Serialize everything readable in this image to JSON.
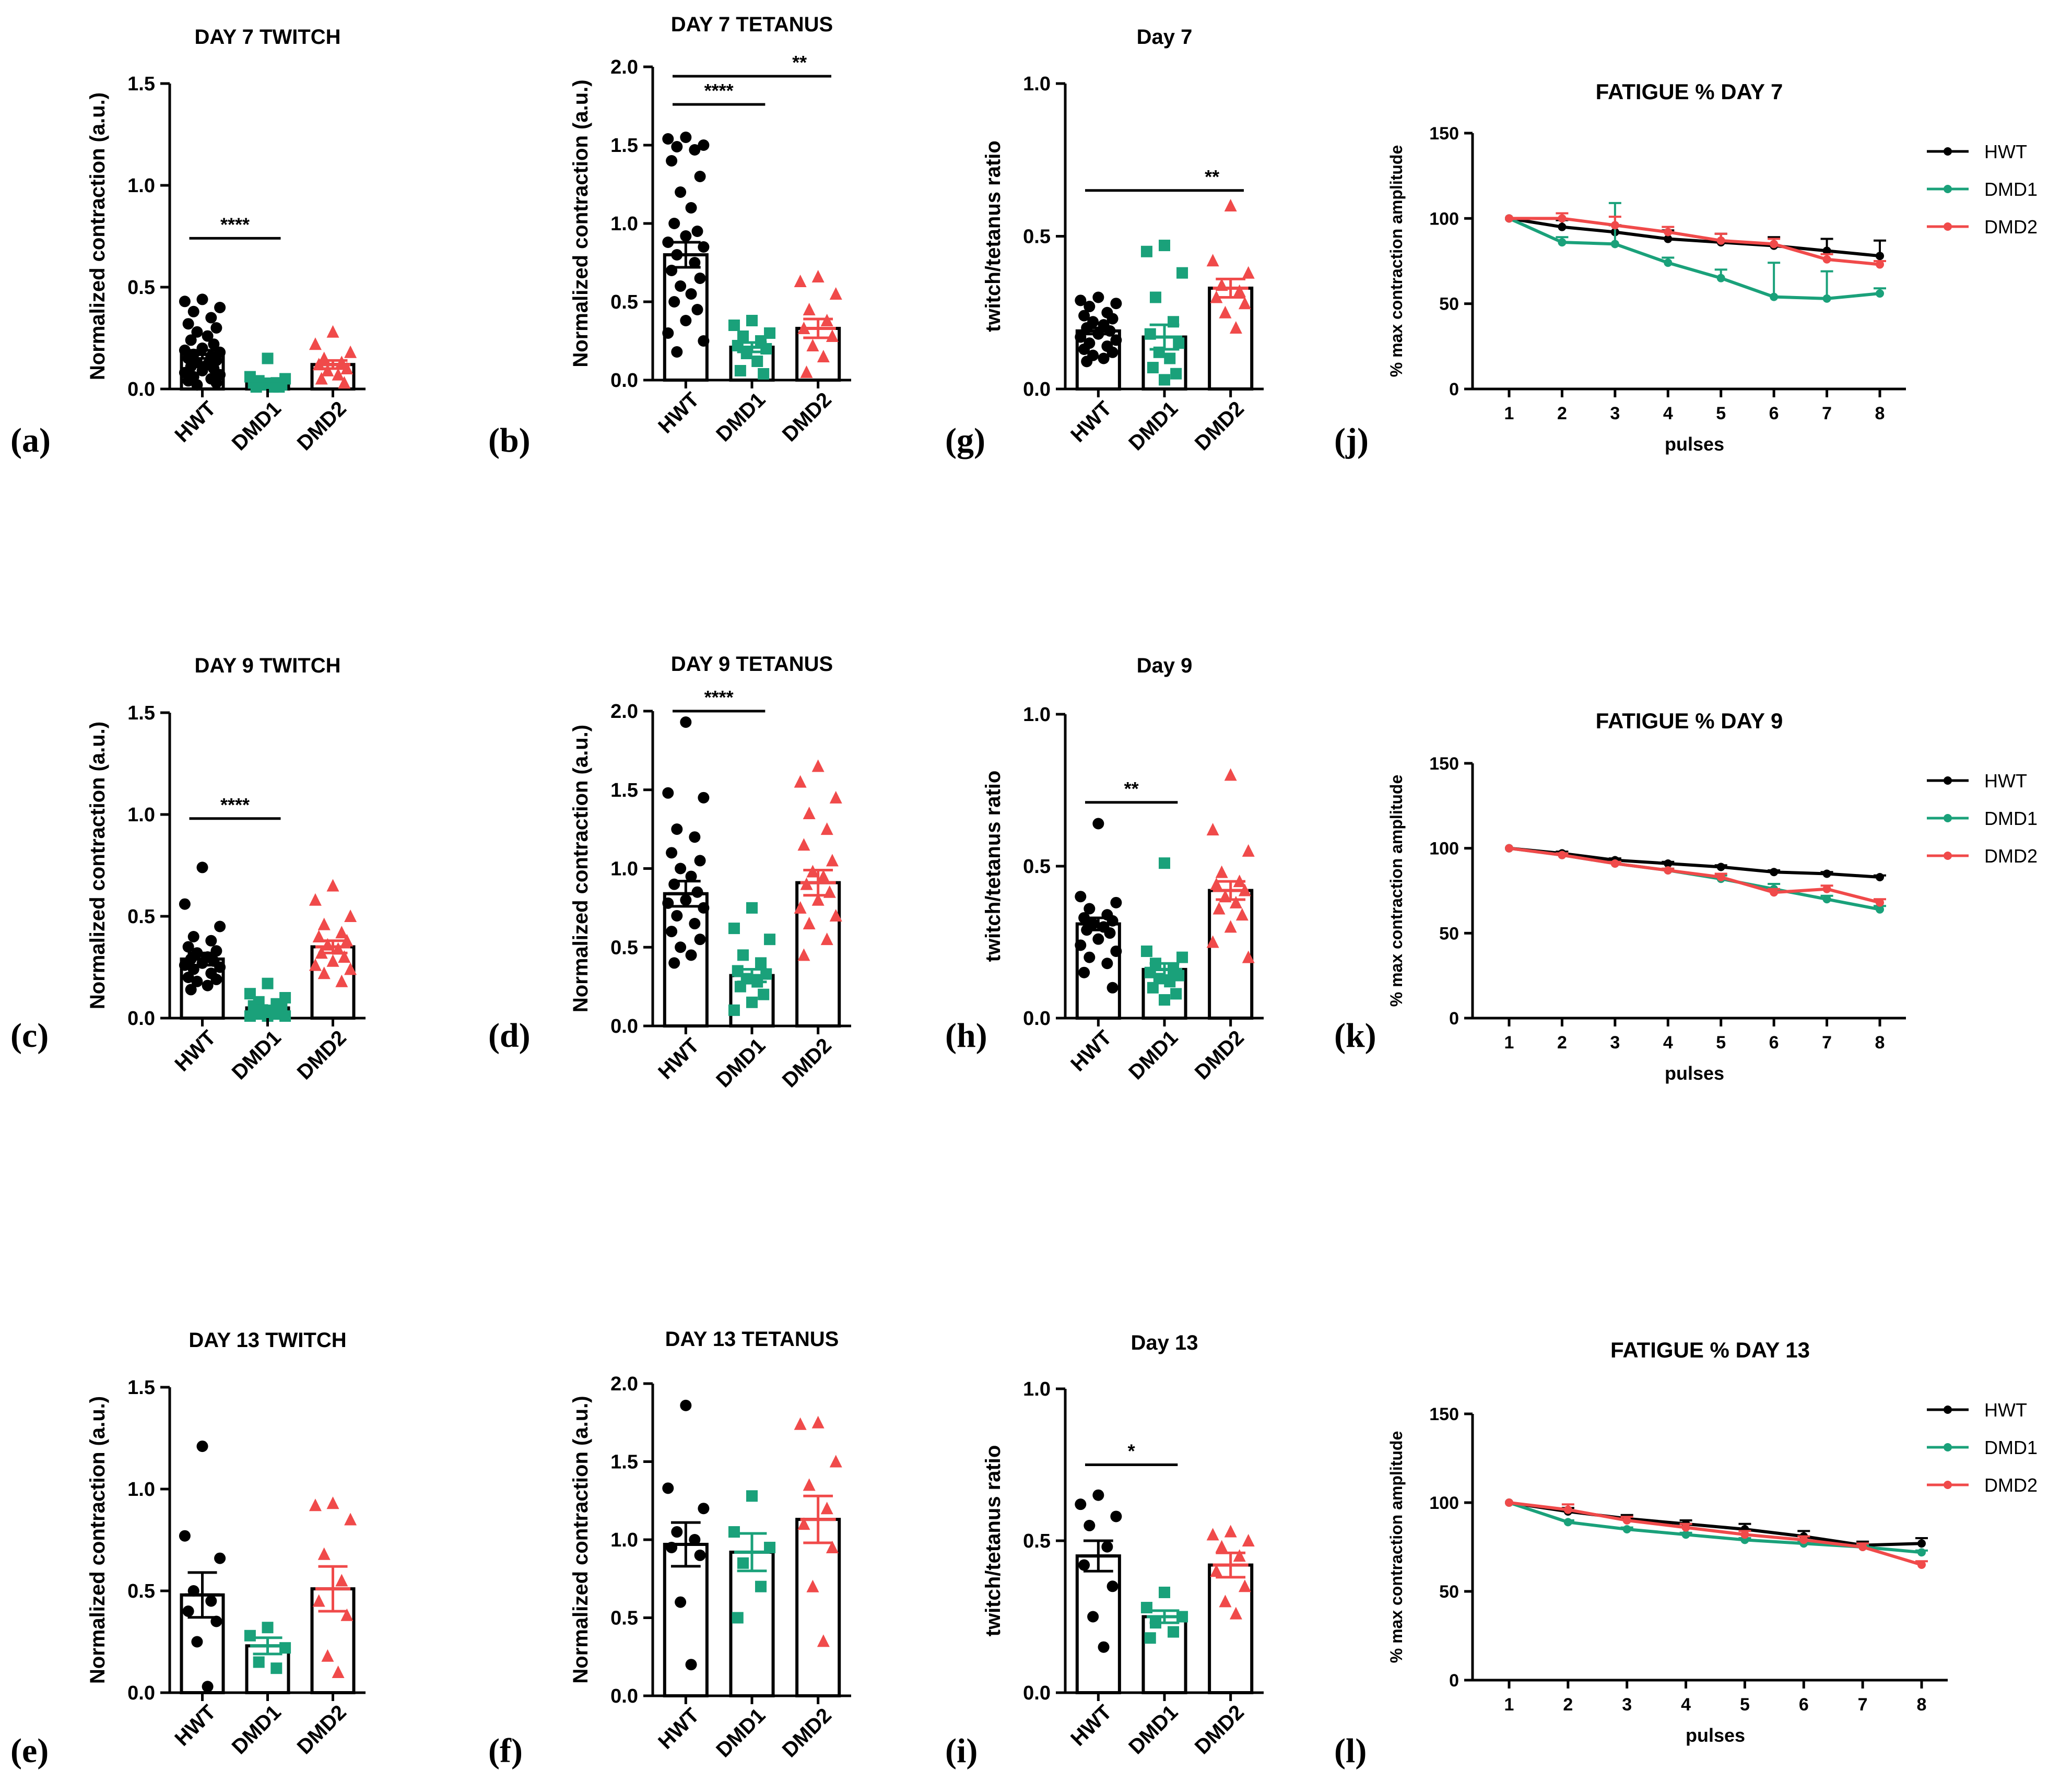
{
  "colors": {
    "HWT": "#000000",
    "DMD1": "#1aa17a",
    "DMD2": "#f04a4a"
  },
  "chart_data": [
    {
      "id": "a",
      "letter": "(a)",
      "type": "bar",
      "title": "DAY 7 TWITCH",
      "ylabel": "Normalized contraction (a.u.)",
      "ylim": [
        0,
        1.5
      ],
      "yticks": [
        "0.0",
        "0.5",
        "1.0",
        "1.5"
      ],
      "categories": [
        "HWT",
        "DMD1",
        "DMD2"
      ],
      "means": [
        0.17,
        0.04,
        0.12
      ],
      "sem": [
        0.02,
        0.01,
        0.02
      ],
      "points": [
        [
          0.44,
          0.43,
          0.4,
          0.38,
          0.35,
          0.32,
          0.3,
          0.28,
          0.26,
          0.24,
          0.22,
          0.2,
          0.19,
          0.18,
          0.17,
          0.16,
          0.15,
          0.14,
          0.13,
          0.12,
          0.11,
          0.1,
          0.09,
          0.08,
          0.07,
          0.06,
          0.05,
          0.04,
          0.03,
          0.02
        ],
        [
          0.15,
          0.06,
          0.05,
          0.04,
          0.03,
          0.03,
          0.02,
          0.02,
          0.01,
          0.01,
          0.01
        ],
        [
          0.28,
          0.22,
          0.18,
          0.15,
          0.13,
          0.12,
          0.1,
          0.09,
          0.07,
          0.05,
          0.03
        ]
      ],
      "sig": [
        {
          "from": 0,
          "to": 1,
          "label": "****",
          "y": 0.74
        }
      ]
    },
    {
      "id": "b",
      "letter": "(b)",
      "type": "bar",
      "title": "DAY 7 TETANUS",
      "ylabel": "Normalized contraction (a.u.)",
      "ylim": [
        0,
        2.0
      ],
      "yticks": [
        "0.0",
        "0.5",
        "1.0",
        "1.5",
        "2.0"
      ],
      "categories": [
        "HWT",
        "DMD1",
        "DMD2"
      ],
      "means": [
        0.8,
        0.21,
        0.33
      ],
      "sem": [
        0.08,
        0.03,
        0.06
      ],
      "points": [
        [
          1.55,
          1.54,
          1.5,
          1.49,
          1.47,
          1.4,
          1.3,
          1.2,
          1.1,
          1.0,
          0.95,
          0.92,
          0.88,
          0.85,
          0.8,
          0.75,
          0.7,
          0.65,
          0.6,
          0.55,
          0.5,
          0.45,
          0.38,
          0.3,
          0.25,
          0.18
        ],
        [
          0.38,
          0.35,
          0.3,
          0.28,
          0.25,
          0.22,
          0.2,
          0.17,
          0.12,
          0.06,
          0.04
        ],
        [
          0.66,
          0.63,
          0.55,
          0.45,
          0.38,
          0.33,
          0.28,
          0.22,
          0.15,
          0.05
        ]
      ],
      "sig": [
        {
          "from": 0,
          "to": 1,
          "label": "****",
          "y": 1.76
        },
        {
          "from": 0,
          "to": 2,
          "label": "**",
          "y": 1.94
        }
      ]
    },
    {
      "id": "g",
      "letter": "(g)",
      "type": "bar",
      "title": "Day 7",
      "ylabel": "twitch/tetanus ratio",
      "ylim": [
        0,
        1.0
      ],
      "yticks": [
        "0.0",
        "0.5",
        "1.0"
      ],
      "categories": [
        "HWT",
        "DMD1",
        "DMD2"
      ],
      "means": [
        0.19,
        0.17,
        0.33
      ],
      "sem": [
        0.01,
        0.04,
        0.03
      ],
      "points": [
        [
          0.3,
          0.29,
          0.28,
          0.27,
          0.25,
          0.24,
          0.23,
          0.22,
          0.21,
          0.2,
          0.19,
          0.18,
          0.17,
          0.16,
          0.15,
          0.14,
          0.13,
          0.12,
          0.11,
          0.1,
          0.09
        ],
        [
          0.47,
          0.45,
          0.38,
          0.3,
          0.22,
          0.18,
          0.15,
          0.12,
          0.1,
          0.07,
          0.05,
          0.03
        ],
        [
          0.6,
          0.42,
          0.38,
          0.34,
          0.32,
          0.3,
          0.28,
          0.25,
          0.2
        ]
      ],
      "sig": [
        {
          "from": 0,
          "to": 2,
          "label": "**",
          "y": 0.65
        }
      ]
    },
    {
      "id": "j",
      "letter": "(j)",
      "type": "line",
      "title": "FATIGUE % DAY 7",
      "ylabel": "% max contraction amplitude",
      "xlabel": "pulses",
      "ylim": [
        0,
        150
      ],
      "yticks": [
        "0",
        "50",
        "100",
        "150"
      ],
      "x": [
        1,
        2,
        3,
        4,
        5,
        6,
        7,
        8
      ],
      "xticks": [
        "1",
        "2",
        "3",
        "4",
        "5",
        "6",
        "7",
        "8"
      ],
      "series": [
        {
          "name": "HWT",
          "values": [
            100,
            95,
            92,
            88,
            86,
            84,
            81,
            78
          ],
          "err": [
            0,
            4,
            4,
            5,
            5,
            5,
            7,
            9
          ]
        },
        {
          "name": "DMD1",
          "values": [
            100,
            86,
            85,
            74,
            65,
            54,
            53,
            56
          ],
          "err": [
            0,
            3,
            24,
            3,
            5,
            20,
            16,
            3
          ]
        },
        {
          "name": "DMD2",
          "values": [
            100,
            100,
            96,
            92,
            87,
            85,
            76,
            73
          ],
          "err": [
            0,
            3,
            5,
            3,
            4,
            3,
            3,
            2
          ]
        }
      ]
    },
    {
      "id": "c",
      "letter": "(c)",
      "type": "bar",
      "title": "DAY 9 TWITCH",
      "ylabel": "Normalized contraction (a.u.)",
      "ylim": [
        0,
        1.5
      ],
      "yticks": [
        "0.0",
        "0.5",
        "1.0",
        "1.5"
      ],
      "categories": [
        "HWT",
        "DMD1",
        "DMD2"
      ],
      "means": [
        0.29,
        0.05,
        0.35
      ],
      "sem": [
        0.03,
        0.01,
        0.03
      ],
      "points": [
        [
          0.74,
          0.56,
          0.45,
          0.4,
          0.38,
          0.35,
          0.33,
          0.32,
          0.3,
          0.29,
          0.28,
          0.27,
          0.26,
          0.25,
          0.24,
          0.22,
          0.2,
          0.19,
          0.18,
          0.16,
          0.14
        ],
        [
          0.17,
          0.12,
          0.1,
          0.08,
          0.07,
          0.06,
          0.05,
          0.04,
          0.03,
          0.02,
          0.02,
          0.01,
          0.01,
          0.01
        ],
        [
          0.65,
          0.58,
          0.5,
          0.46,
          0.42,
          0.4,
          0.38,
          0.36,
          0.34,
          0.32,
          0.3,
          0.28,
          0.26,
          0.24,
          0.22,
          0.18
        ]
      ],
      "sig": [
        {
          "from": 0,
          "to": 1,
          "label": "****",
          "y": 0.98
        }
      ]
    },
    {
      "id": "d",
      "letter": "(d)",
      "type": "bar",
      "title": "DAY 9 TETANUS",
      "ylabel": "Normalized contraction (a.u.)",
      "ylim": [
        0,
        2.0
      ],
      "yticks": [
        "0.0",
        "0.5",
        "1.0",
        "1.5",
        "2.0"
      ],
      "categories": [
        "HWT",
        "DMD1",
        "DMD2"
      ],
      "means": [
        0.84,
        0.32,
        0.91
      ],
      "sem": [
        0.08,
        0.04,
        0.08
      ],
      "points": [
        [
          1.93,
          1.48,
          1.45,
          1.25,
          1.2,
          1.1,
          1.05,
          1.0,
          0.95,
          0.9,
          0.85,
          0.8,
          0.78,
          0.75,
          0.7,
          0.65,
          0.6,
          0.55,
          0.5,
          0.45,
          0.4
        ],
        [
          0.75,
          0.62,
          0.55,
          0.45,
          0.4,
          0.35,
          0.33,
          0.3,
          0.28,
          0.25,
          0.2,
          0.15,
          0.1
        ],
        [
          1.65,
          1.55,
          1.45,
          1.35,
          1.25,
          1.15,
          1.05,
          0.98,
          0.95,
          0.9,
          0.85,
          0.8,
          0.75,
          0.7,
          0.65,
          0.55,
          0.45
        ]
      ],
      "sig": [
        {
          "from": 0,
          "to": 1,
          "label": "****",
          "y": 2.0
        }
      ]
    },
    {
      "id": "h",
      "letter": "(h)",
      "type": "bar",
      "title": "Day 9",
      "ylabel": "twitch/tetanus ratio",
      "ylim": [
        0,
        1.0
      ],
      "yticks": [
        "0.0",
        "0.5",
        "1.0"
      ],
      "categories": [
        "HWT",
        "DMD1",
        "DMD2"
      ],
      "means": [
        0.31,
        0.16,
        0.42
      ],
      "sem": [
        0.02,
        0.02,
        0.03
      ],
      "points": [
        [
          0.64,
          0.4,
          0.38,
          0.36,
          0.34,
          0.33,
          0.32,
          0.31,
          0.3,
          0.29,
          0.28,
          0.26,
          0.24,
          0.22,
          0.2,
          0.18,
          0.15,
          0.1
        ],
        [
          0.51,
          0.22,
          0.2,
          0.18,
          0.16,
          0.15,
          0.14,
          0.13,
          0.12,
          0.1,
          0.08,
          0.06
        ],
        [
          0.8,
          0.62,
          0.55,
          0.48,
          0.45,
          0.44,
          0.42,
          0.4,
          0.38,
          0.36,
          0.34,
          0.3,
          0.25,
          0.2
        ]
      ],
      "sig": [
        {
          "from": 0,
          "to": 1,
          "label": "**",
          "y": 0.71
        }
      ]
    },
    {
      "id": "k",
      "letter": "(k)",
      "type": "line",
      "title": "FATIGUE % DAY 9",
      "ylabel": "% max contraction amplitude",
      "xlabel": "pulses",
      "ylim": [
        0,
        150
      ],
      "yticks": [
        "0",
        "50",
        "100",
        "150"
      ],
      "x": [
        1,
        2,
        3,
        4,
        5,
        6,
        7,
        8
      ],
      "xticks": [
        "1",
        "2",
        "3",
        "4",
        "5",
        "6",
        "7",
        "8"
      ],
      "series": [
        {
          "name": "HWT",
          "values": [
            100,
            97,
            93,
            91,
            89,
            86,
            85,
            83
          ],
          "err": [
            0,
            1,
            1,
            1,
            1,
            1,
            1,
            1
          ]
        },
        {
          "name": "DMD1",
          "values": [
            100,
            96,
            91,
            87,
            82,
            76,
            70,
            64
          ],
          "err": [
            0,
            1,
            1,
            1,
            2,
            3,
            2,
            2
          ]
        },
        {
          "name": "DMD2",
          "values": [
            100,
            96,
            91,
            87,
            83,
            74,
            76,
            68
          ],
          "err": [
            0,
            1,
            1,
            1,
            2,
            2,
            2,
            2
          ]
        }
      ]
    },
    {
      "id": "e",
      "letter": "(e)",
      "type": "bar",
      "title": "DAY 13 TWITCH",
      "ylabel": "Normalized contraction (a.u.)",
      "ylim": [
        0,
        1.5
      ],
      "yticks": [
        "0.0",
        "0.5",
        "1.0",
        "1.5"
      ],
      "categories": [
        "HWT",
        "DMD1",
        "DMD2"
      ],
      "means": [
        0.48,
        0.23,
        0.51
      ],
      "sem": [
        0.11,
        0.04,
        0.11
      ],
      "points": [
        [
          1.21,
          0.77,
          0.66,
          0.5,
          0.45,
          0.4,
          0.35,
          0.25,
          0.03
        ],
        [
          0.32,
          0.28,
          0.22,
          0.15,
          0.12
        ],
        [
          0.93,
          0.92,
          0.85,
          0.68,
          0.55,
          0.45,
          0.38,
          0.18,
          0.1
        ]
      ],
      "sig": []
    },
    {
      "id": "f",
      "letter": "(f)",
      "type": "bar",
      "title": "DAY 13 TETANUS",
      "ylabel": "Normalized contraction (a.u.)",
      "ylim": [
        0,
        2.0
      ],
      "yticks": [
        "0.0",
        "0.5",
        "1.0",
        "1.5",
        "2.0"
      ],
      "categories": [
        "HWT",
        "DMD1",
        "DMD2"
      ],
      "means": [
        0.97,
        0.92,
        1.13
      ],
      "sem": [
        0.14,
        0.12,
        0.15
      ],
      "points": [
        [
          1.86,
          1.33,
          1.2,
          1.05,
          1.0,
          0.95,
          0.9,
          0.6,
          0.2
        ],
        [
          1.28,
          1.05,
          0.95,
          0.85,
          0.7,
          0.5
        ],
        [
          1.75,
          1.74,
          1.5,
          1.35,
          1.2,
          1.1,
          0.95,
          0.7,
          0.35
        ]
      ],
      "sig": []
    },
    {
      "id": "i",
      "letter": "(i)",
      "type": "bar",
      "title": "Day 13",
      "ylabel": "twitch/tetanus ratio",
      "ylim": [
        0,
        1.0
      ],
      "yticks": [
        "0.0",
        "0.5",
        "1.0"
      ],
      "categories": [
        "HWT",
        "DMD1",
        "DMD2"
      ],
      "means": [
        0.45,
        0.25,
        0.42
      ],
      "sem": [
        0.05,
        0.02,
        0.04
      ],
      "points": [
        [
          0.65,
          0.62,
          0.58,
          0.55,
          0.48,
          0.42,
          0.35,
          0.25,
          0.15
        ],
        [
          0.33,
          0.28,
          0.25,
          0.23,
          0.2,
          0.18
        ],
        [
          0.53,
          0.52,
          0.5,
          0.48,
          0.45,
          0.4,
          0.35,
          0.3,
          0.26
        ]
      ],
      "sig": [
        {
          "from": 0,
          "to": 1,
          "label": "*",
          "y": 0.75
        }
      ]
    },
    {
      "id": "l",
      "letter": "(l)",
      "type": "line",
      "title": "FATIGUE % DAY 13",
      "ylabel": "% max contraction amplitude",
      "xlabel": "pulses",
      "ylim": [
        0,
        150
      ],
      "yticks": [
        "0",
        "50",
        "100",
        "150"
      ],
      "x": [
        1,
        2,
        3,
        4,
        5,
        6,
        7,
        8
      ],
      "xticks": [
        "1",
        "2",
        "3",
        "4",
        "5",
        "6",
        "7",
        "8"
      ],
      "series": [
        {
          "name": "HWT",
          "values": [
            100,
            95,
            91,
            88,
            85,
            81,
            76,
            77
          ],
          "err": [
            0,
            2,
            2,
            2,
            3,
            3,
            2,
            3
          ]
        },
        {
          "name": "DMD1",
          "values": [
            100,
            89,
            85,
            82,
            79,
            77,
            75,
            72
          ],
          "err": [
            0,
            1,
            1,
            1,
            1,
            1,
            1,
            1
          ]
        },
        {
          "name": "DMD2",
          "values": [
            100,
            96,
            90,
            86,
            82,
            79,
            75,
            65
          ],
          "err": [
            0,
            3,
            2,
            2,
            2,
            2,
            2,
            2
          ]
        }
      ]
    }
  ]
}
